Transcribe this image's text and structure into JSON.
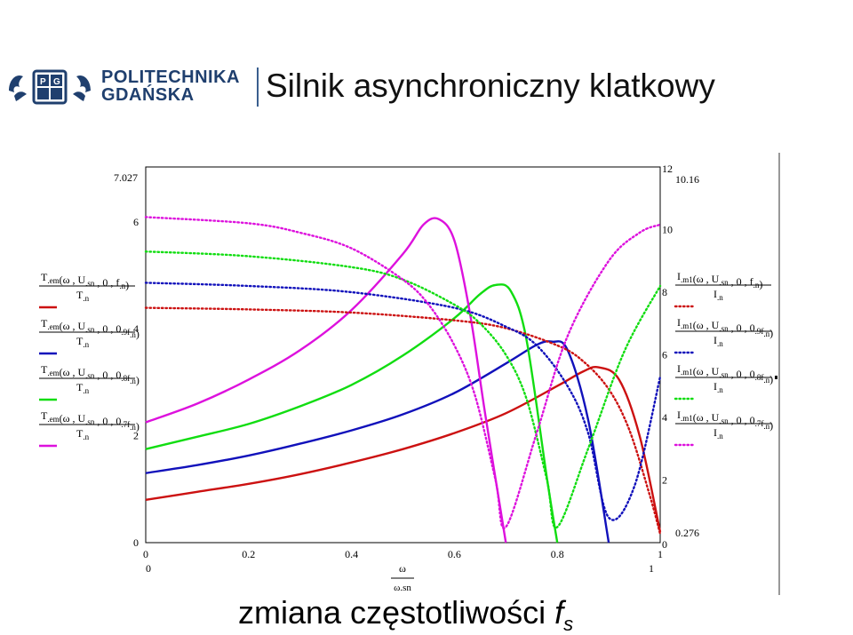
{
  "slide": {
    "title": "Silnik asynchroniczny klatkowy",
    "bottom_text": "zmiana częstotliwości",
    "bottom_symbol": "f",
    "bottom_subscript": "s",
    "logo_line1": "POLITECHNIKA",
    "logo_line2": "GDAŃSKA"
  },
  "colors": {
    "red": "#cc1111",
    "blue": "#1111bb",
    "green": "#11dd11",
    "magenta": "#dd11dd",
    "logo": "#1f3f6e"
  },
  "chart_data": {
    "type": "line",
    "x_domain": [
      0,
      1
    ],
    "left_axis": {
      "ylim": [
        0,
        7.027
      ],
      "ticks": [
        "0",
        "2",
        "4",
        "6"
      ],
      "top_marker": "7.027"
    },
    "right_axis": {
      "ylim": [
        0.276,
        12
      ],
      "ticks": [
        "0",
        "2",
        "4",
        "6",
        "8",
        "10",
        "12"
      ],
      "top_marker": "10.16",
      "bottom_marker": "0.276"
    },
    "x_ticks": [
      "0",
      "0.2",
      "0.4",
      "0.6",
      "0.8",
      "1"
    ],
    "x_range_labels": {
      "min": "0",
      "max": "1"
    },
    "x_label_top": "ω",
    "x_label_bottom": "ω.sn",
    "left_legend": [
      {
        "func": "T.em(ω , U.sn , 0 , f.n)",
        "den": "T.n",
        "color": "red"
      },
      {
        "func": "T.em(ω , U.sn , 0 , 0.9f.n)",
        "den": "T.n",
        "color": "blue"
      },
      {
        "func": "T.em(ω , U.sn , 0 , 0.8f.n)",
        "den": "T.n",
        "color": "green"
      },
      {
        "func": "T.em(ω , U.sn , 0 , 0.7f.n)",
        "den": "T.n",
        "color": "magenta"
      }
    ],
    "right_legend": [
      {
        "func": "I.m1(ω , U.sn , 0 , f.n)",
        "den": "I.n",
        "color": "red"
      },
      {
        "func": "I.m1(ω , U.sn , 0 , 0.9f.n)",
        "den": "I.n",
        "color": "blue"
      },
      {
        "func": "I.m1(ω , U.sn , 0 , 0.8f.n)",
        "den": "I.n",
        "color": "green"
      },
      {
        "func": "I.m1(ω , U.sn , 0 , 0.7f.n)",
        "den": "I.n",
        "color": "magenta"
      }
    ],
    "series": [
      {
        "name": "T.em(ω , U.sn , 0 , f.n)",
        "axis": "left",
        "style": "solid",
        "color": "red",
        "x": [
          0,
          0.1,
          0.2,
          0.3,
          0.4,
          0.5,
          0.6,
          0.7,
          0.8,
          0.85,
          0.88,
          0.92,
          0.96,
          1.0
        ],
        "y": [
          0.8,
          0.95,
          1.1,
          1.28,
          1.5,
          1.75,
          2.05,
          2.42,
          2.93,
          3.2,
          3.28,
          3.05,
          2.0,
          0.2
        ]
      },
      {
        "name": "T.em(ω , U.sn , 0 , 0.9f.n)",
        "axis": "left",
        "style": "solid",
        "color": "blue",
        "x": [
          0,
          0.1,
          0.2,
          0.3,
          0.4,
          0.5,
          0.6,
          0.7,
          0.76,
          0.79,
          0.82,
          0.86,
          0.9
        ],
        "y": [
          1.3,
          1.45,
          1.63,
          1.85,
          2.1,
          2.4,
          2.8,
          3.35,
          3.7,
          3.76,
          3.6,
          2.3,
          0.0
        ]
      },
      {
        "name": "T.em(ω , U.sn , 0 , 0.8f.n)",
        "axis": "left",
        "style": "solid",
        "color": "green",
        "x": [
          0,
          0.1,
          0.2,
          0.3,
          0.4,
          0.5,
          0.6,
          0.65,
          0.68,
          0.71,
          0.74,
          0.78,
          0.8
        ],
        "y": [
          1.75,
          1.98,
          2.22,
          2.55,
          2.95,
          3.5,
          4.2,
          4.65,
          4.82,
          4.7,
          3.8,
          1.2,
          0.0
        ]
      },
      {
        "name": "T.em(ω , U.sn , 0 , 0.7f.n)",
        "axis": "left",
        "style": "solid",
        "color": "magenta",
        "x": [
          0,
          0.1,
          0.2,
          0.3,
          0.4,
          0.5,
          0.54,
          0.57,
          0.6,
          0.63,
          0.66,
          0.7
        ],
        "y": [
          2.25,
          2.6,
          3.05,
          3.6,
          4.35,
          5.4,
          5.95,
          6.05,
          5.65,
          4.3,
          2.4,
          0.0
        ]
      },
      {
        "name": "I.m1(ω , U.sn , 0 , f.n)",
        "axis": "right",
        "style": "dotted",
        "color": "red",
        "x": [
          0,
          0.2,
          0.4,
          0.6,
          0.7,
          0.8,
          0.85,
          0.9,
          0.94,
          0.98,
          1.0
        ],
        "y": [
          7.5,
          7.45,
          7.35,
          7.1,
          6.85,
          6.3,
          5.8,
          4.9,
          3.6,
          1.5,
          0.276
        ]
      },
      {
        "name": "I.m1(ω , U.sn , 0 , 0.9f.n)",
        "axis": "right",
        "style": "dotted",
        "color": "blue",
        "x": [
          0,
          0.2,
          0.4,
          0.6,
          0.7,
          0.76,
          0.82,
          0.86,
          0.9,
          0.95,
          1.0
        ],
        "y": [
          8.3,
          8.2,
          8.0,
          7.5,
          6.9,
          6.3,
          5.0,
          3.5,
          0.8,
          1.8,
          5.3
        ]
      },
      {
        "name": "I.m1(ω , U.sn , 0 , 0.8f.n)",
        "axis": "right",
        "style": "dotted",
        "color": "green",
        "x": [
          0,
          0.2,
          0.4,
          0.5,
          0.6,
          0.65,
          0.7,
          0.74,
          0.78,
          0.8,
          0.86,
          0.93,
          1.0
        ],
        "y": [
          9.3,
          9.15,
          8.8,
          8.4,
          7.6,
          7.0,
          6.0,
          4.6,
          2.0,
          0.5,
          3.0,
          6.1,
          8.2
        ]
      },
      {
        "name": "I.m1(ω , U.sn , 0 , 0.7f.n)",
        "axis": "right",
        "style": "dotted",
        "color": "magenta",
        "x": [
          0,
          0.2,
          0.3,
          0.4,
          0.5,
          0.55,
          0.6,
          0.64,
          0.68,
          0.7,
          0.76,
          0.82,
          0.9,
          0.96,
          1.0
        ],
        "y": [
          10.4,
          10.2,
          9.9,
          9.4,
          8.4,
          7.6,
          6.3,
          4.7,
          2.0,
          0.5,
          3.5,
          6.6,
          9.0,
          9.9,
          10.16
        ]
      }
    ]
  }
}
